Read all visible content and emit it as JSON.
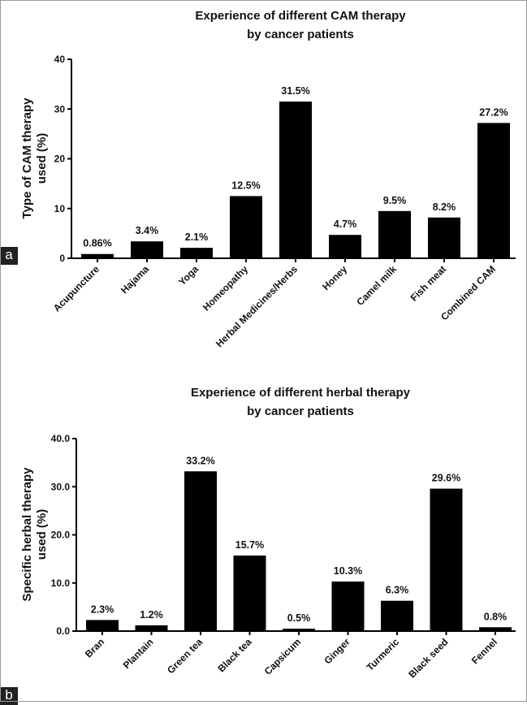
{
  "panels": [
    {
      "letter": "a",
      "title_lines": [
        "Experience of different CAM therapy",
        "by cancer patients"
      ],
      "ylabel_lines": [
        "Type of CAM therapy",
        "used (%)"
      ]
    },
    {
      "letter": "b",
      "title_lines": [
        "Experience of different herbal therapy",
        "by cancer patients"
      ],
      "ylabel_lines": [
        "Specific herbal therapy",
        "used (%)"
      ]
    }
  ],
  "chart_data": [
    {
      "type": "bar",
      "title": "Experience of different CAM therapy by cancer patients",
      "ylabel": "Type of CAM therapy used (%)",
      "xlabel": "",
      "ylim": [
        0,
        40
      ],
      "yticks": [
        "0",
        "10",
        "20",
        "30",
        "40"
      ],
      "categories": [
        "Acupuncture",
        "Hajama",
        "Yoga",
        "Homeopathy",
        "Herbal Medicines/Herbs",
        "Honey",
        "Camel milk",
        "Fish meat",
        "Combined CAM"
      ],
      "values": [
        0.86,
        3.4,
        2.1,
        12.5,
        31.5,
        4.7,
        9.5,
        8.2,
        27.2
      ],
      "data_labels": [
        "0.86%",
        "3.4%",
        "2.1%",
        "12.5%",
        "31.5%",
        "4.7%",
        "9.5%",
        "8.2%",
        "27.2%"
      ],
      "bar_color": "#000000",
      "grid": false,
      "legend": "none"
    },
    {
      "type": "bar",
      "title": "Experience of different herbal therapy by cancer patients",
      "ylabel": "Specific herbal therapy used (%)",
      "xlabel": "",
      "ylim": [
        0,
        40
      ],
      "yticks": [
        "0.0",
        "10.0",
        "20.0",
        "30.0",
        "40.0"
      ],
      "categories": [
        "Bran",
        "Plantain",
        "Green tea",
        "Black tea",
        "Capsicum",
        "Ginger",
        "Turmeric",
        "Black seed",
        "Fennel"
      ],
      "values": [
        2.3,
        1.2,
        33.2,
        15.7,
        0.5,
        10.3,
        6.3,
        29.6,
        0.8
      ],
      "data_labels": [
        "2.3%",
        "1.2%",
        "33.2%",
        "15.7%",
        "0.5%",
        "10.3%",
        "6.3%",
        "29.6%",
        "0.8%"
      ],
      "bar_color": "#000000",
      "grid": false,
      "legend": "none"
    }
  ]
}
